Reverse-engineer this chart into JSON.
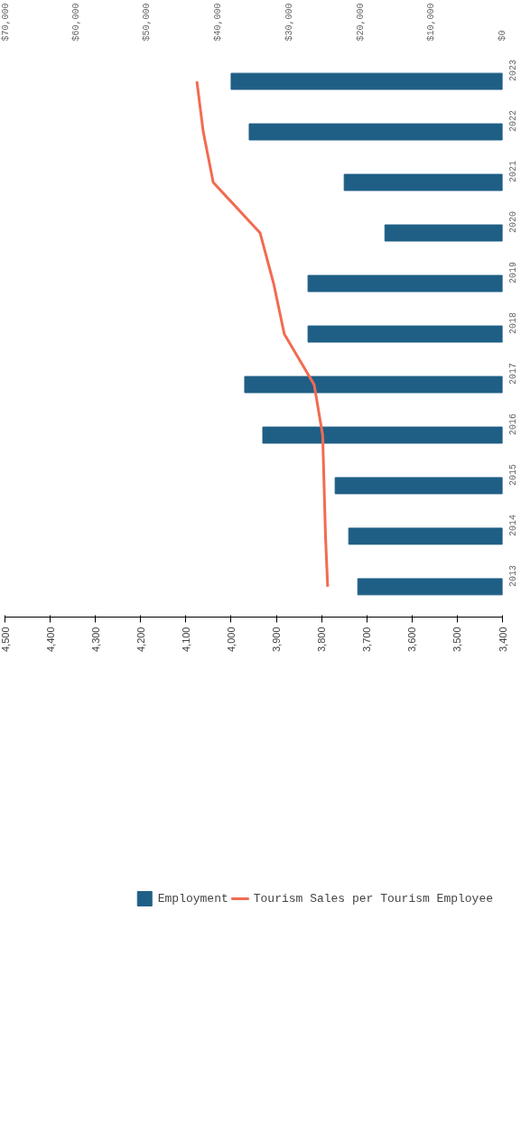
{
  "chart_data": {
    "type": "bar",
    "orientation": "horizontal",
    "categories": [
      "2023",
      "2022",
      "2021",
      "2020",
      "2019",
      "2018",
      "2017",
      "2016",
      "2015",
      "2014",
      "2013"
    ],
    "series": [
      {
        "name": "Employment",
        "color": "#1f5f86",
        "values": [
          4000,
          3960,
          3750,
          3660,
          3830,
          3830,
          3970,
          3930,
          3770,
          3740,
          3720
        ]
      },
      {
        "name": "Tourism Sales per Tourism Employee",
        "type": "line",
        "axis": "x2",
        "color": "#f26b50",
        "values": [
          43000,
          42100,
          40700,
          34100,
          32200,
          30700,
          26500,
          25300,
          25100,
          24900,
          24600
        ]
      }
    ],
    "xlim": [
      4500,
      3400
    ],
    "xticks": [
      {
        "value": 3400,
        "label": "3,400"
      },
      {
        "value": 3500,
        "label": "3,500"
      },
      {
        "value": 3600,
        "label": "3,600"
      },
      {
        "value": 3700,
        "label": "3,700"
      },
      {
        "value": 3800,
        "label": "3,800"
      },
      {
        "value": 3900,
        "label": "3,900"
      },
      {
        "value": 4000,
        "label": "4,000"
      },
      {
        "value": 4100,
        "label": "4,100"
      },
      {
        "value": 4200,
        "label": "4,200"
      },
      {
        "value": 4300,
        "label": "4,300"
      },
      {
        "value": 4400,
        "label": "4,400"
      },
      {
        "value": 4500,
        "label": "4,500"
      }
    ],
    "x2lim": [
      70000,
      0
    ],
    "x2ticks": [
      {
        "value": 0,
        "label": "$0"
      },
      {
        "value": 10000,
        "label": "$10,000"
      },
      {
        "value": 20000,
        "label": "$20,000"
      },
      {
        "value": 30000,
        "label": "$30,000"
      },
      {
        "value": 40000,
        "label": "$40,000"
      },
      {
        "value": 50000,
        "label": "$50,000"
      },
      {
        "value": 60000,
        "label": "$60,000"
      },
      {
        "value": 70000,
        "label": "$70,000"
      }
    ],
    "legend": "bottom"
  }
}
